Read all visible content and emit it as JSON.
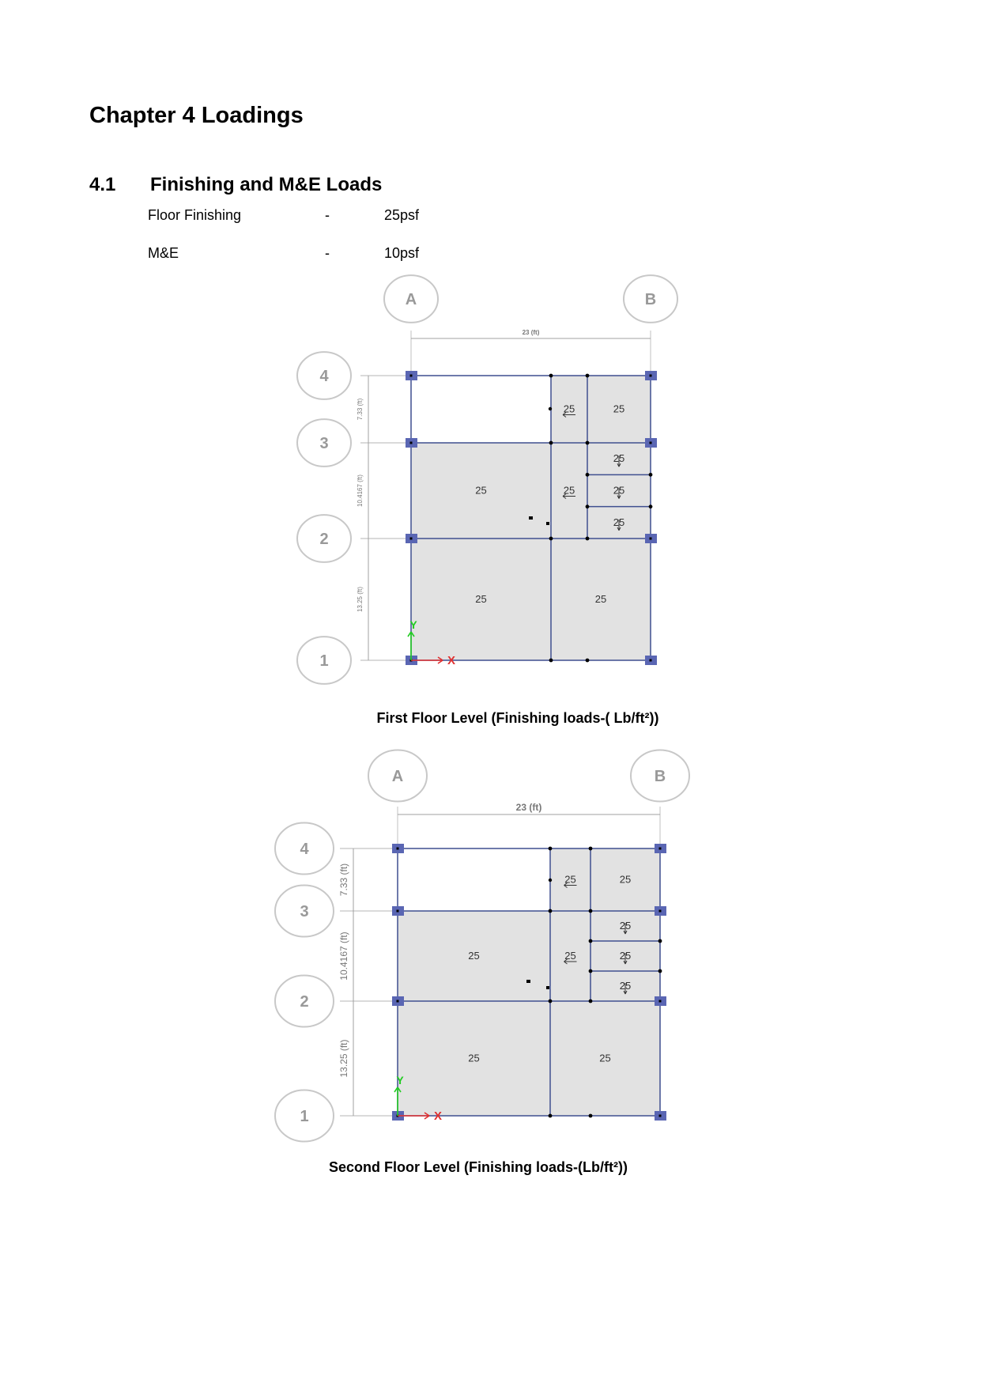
{
  "chapter_title": "Chapter 4 Loadings",
  "section": {
    "number": "4.1",
    "title": "Finishing and M&E Loads"
  },
  "loads": [
    {
      "name": "Floor Finishing",
      "sep": "-",
      "value": "25psf"
    },
    {
      "name": "M&E",
      "sep": "-",
      "value": "10psf"
    }
  ],
  "plans": [
    {
      "caption": "First Floor Level (Finishing loads-( Lb/ft²))",
      "grid_cols": [
        "A",
        "B"
      ],
      "grid_rows": [
        "4",
        "3",
        "2",
        "1"
      ],
      "dim_top": "23 (ft)",
      "dim_left": [
        "7.33 (ft)",
        "10.4167 (ft)",
        "13.25 (ft)"
      ],
      "load_value": "25",
      "axis_labels": {
        "x": "X",
        "y": "Y"
      }
    },
    {
      "caption": "Second Floor Level (Finishing loads-(Lb/ft²))",
      "grid_cols": [
        "A",
        "B"
      ],
      "grid_rows": [
        "4",
        "3",
        "2",
        "1"
      ],
      "dim_top": "23 (ft)",
      "dim_left": [
        "7.33 (ft)",
        "10.4167 (ft)",
        "13.25 (ft)"
      ],
      "load_value": "25",
      "axis_labels": {
        "x": "X",
        "y": "Y"
      }
    }
  ],
  "colors": {
    "slab": "#e2e2e2",
    "beam": "#3f4f8f",
    "column": "#5a66b3",
    "bubble": "#c8c8c8",
    "axis_x": "#e03030",
    "axis_y": "#22cc22"
  }
}
